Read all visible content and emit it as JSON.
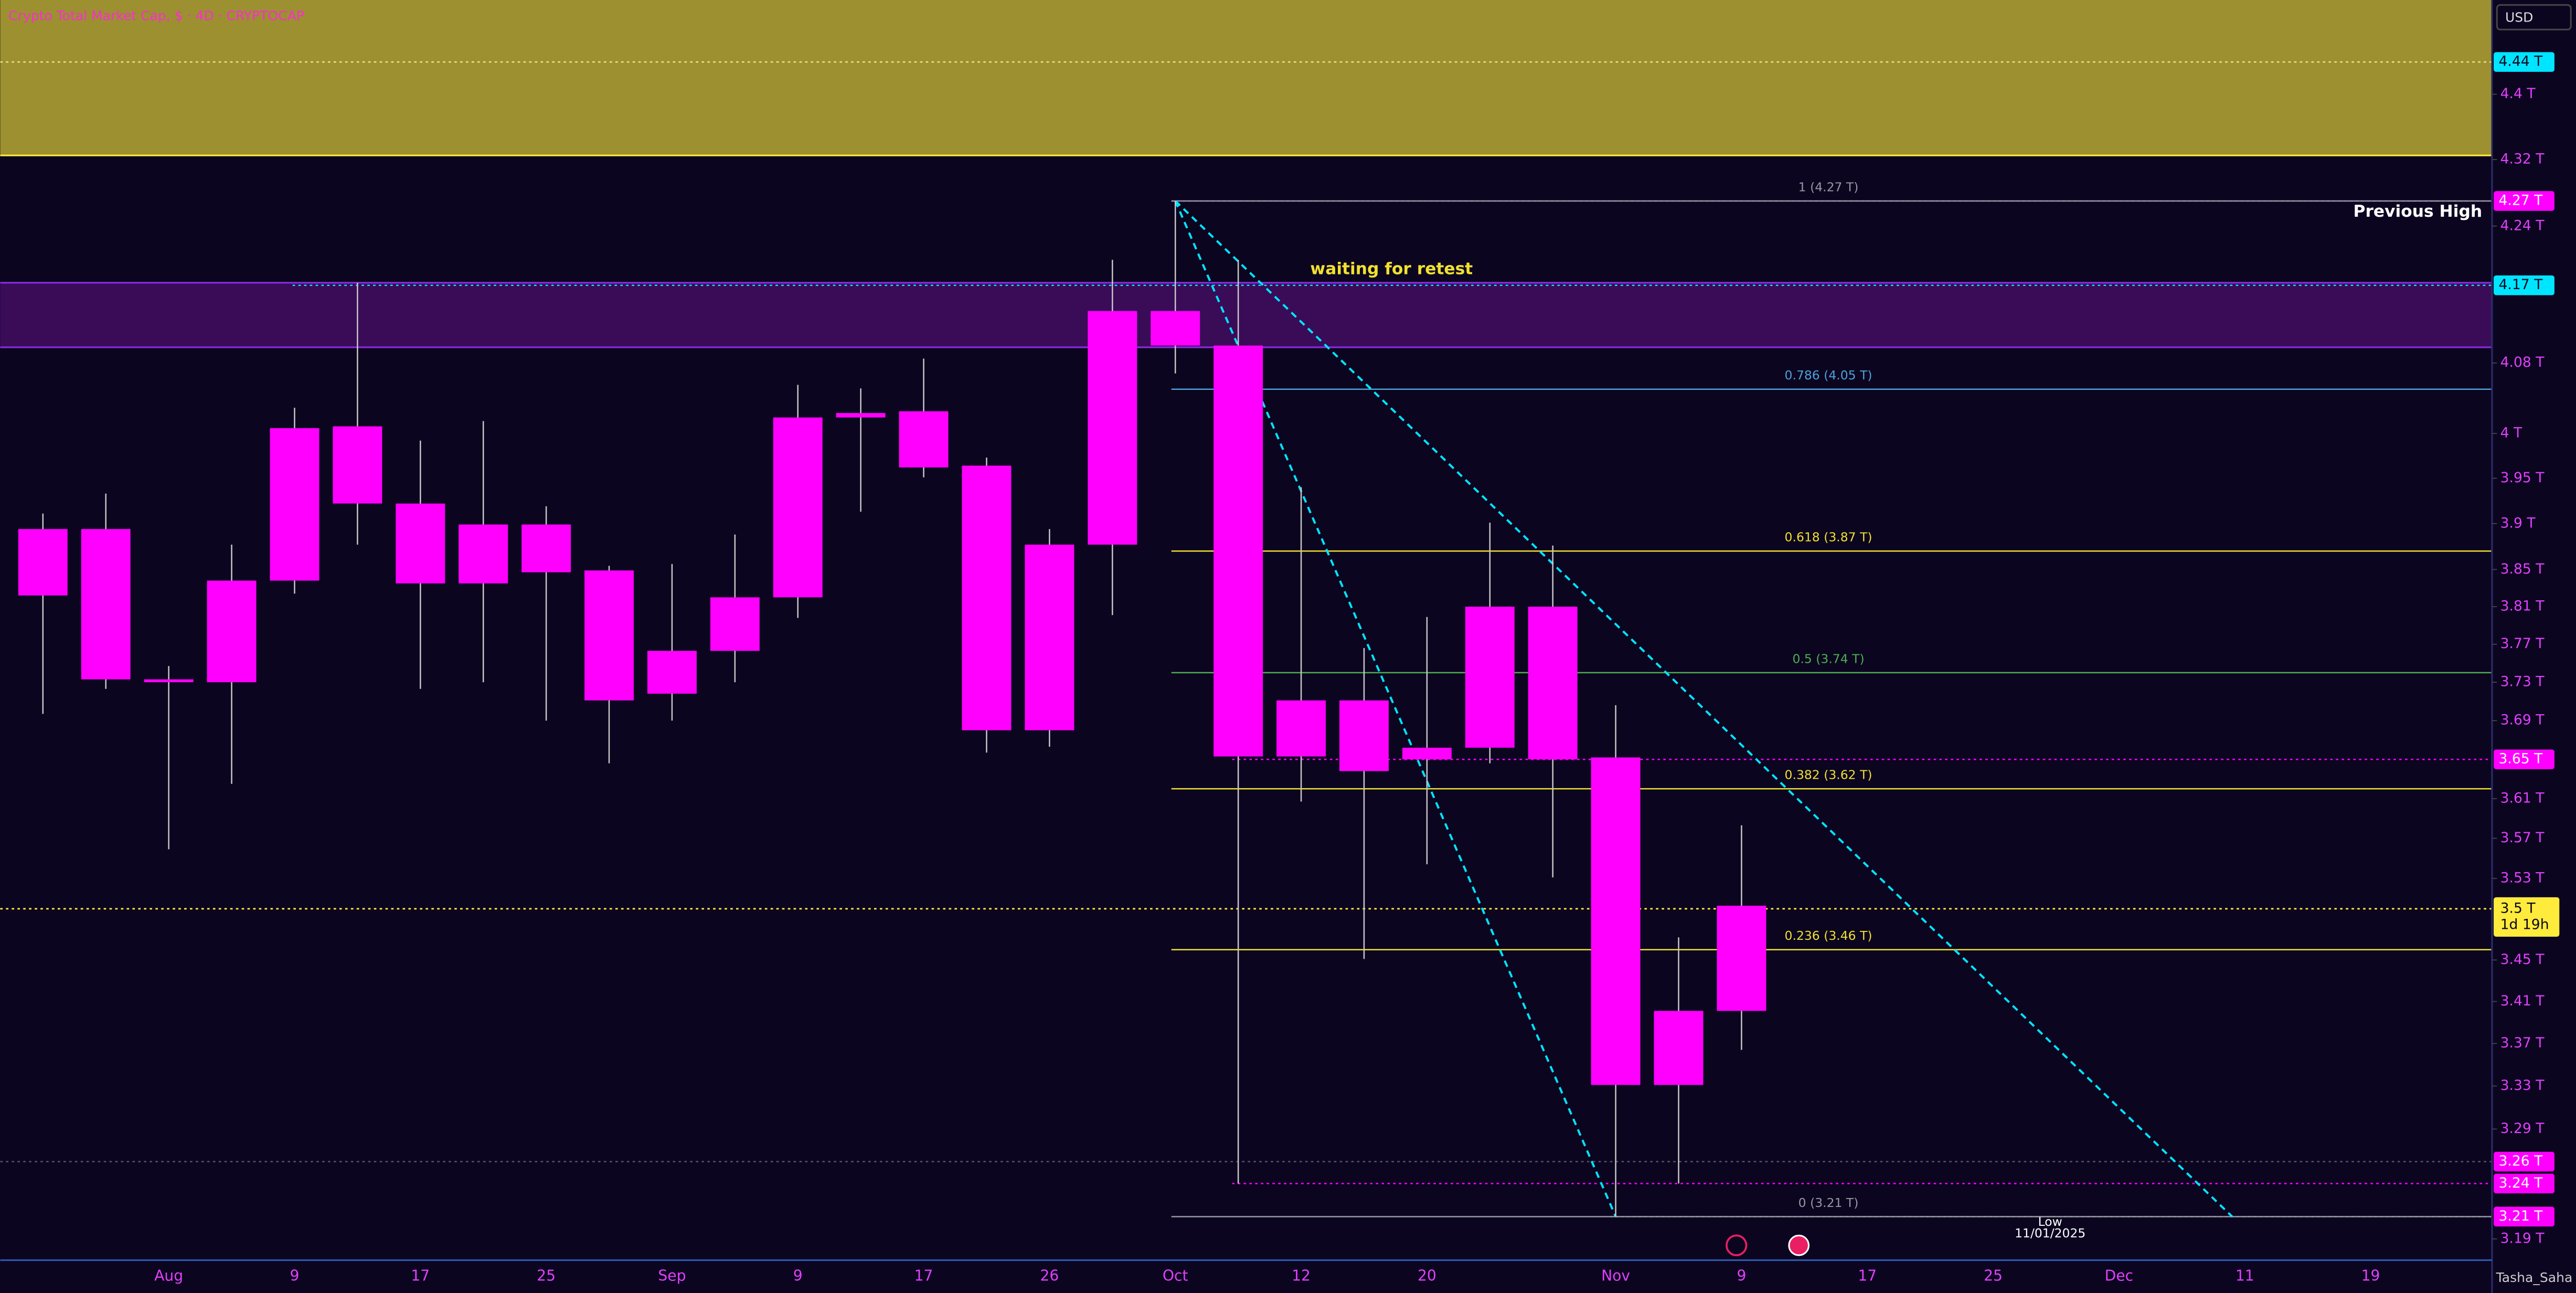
{
  "chart_data": {
    "type": "candlestick",
    "title": "Crypto Total Market Cap, $ · 4D · CRYPTOCAP",
    "currency": "USD",
    "log_scale": true,
    "grid": false,
    "color": "#ff00ff",
    "wick_color": "#c8c8c8",
    "categories": [
      null,
      null,
      "Aug",
      null,
      "9",
      null,
      "17",
      null,
      "25",
      null,
      "Sep",
      null,
      "9",
      null,
      "17",
      null,
      "26",
      null,
      "Oct",
      null,
      "12",
      null,
      "20",
      null,
      null,
      "Nov",
      null,
      "9",
      null,
      "17",
      null,
      "25",
      null,
      "Dec",
      null,
      "11",
      null,
      "19",
      null
    ],
    "open": [
      3.822,
      3.894,
      3.733,
      3.73,
      3.838,
      4.008,
      3.922,
      3.835,
      3.899,
      3.849,
      3.718,
      3.763,
      3.82,
      4.018,
      4.025,
      3.964,
      3.68,
      3.877,
      4.14,
      4.1,
      3.653,
      3.711,
      3.65,
      3.662,
      3.81,
      3.652,
      3.331,
      3.401,
      null,
      null,
      null,
      null,
      null,
      null,
      null,
      null,
      null,
      null,
      null
    ],
    "high": [
      3.911,
      3.933,
      3.747,
      3.877,
      4.029,
      4.173,
      3.992,
      4.014,
      3.919,
      3.854,
      3.856,
      3.888,
      4.055,
      4.051,
      4.085,
      3.973,
      3.894,
      4.2,
      4.27,
      4.2,
      3.94,
      3.766,
      3.799,
      3.901,
      3.876,
      3.706,
      3.472,
      3.583,
      null,
      null,
      null,
      null,
      null,
      null,
      null,
      null,
      null,
      null,
      null
    ],
    "low": [
      3.697,
      3.723,
      3.559,
      3.625,
      3.824,
      3.877,
      3.723,
      3.73,
      3.69,
      3.646,
      3.69,
      3.73,
      3.798,
      3.913,
      3.951,
      3.657,
      3.663,
      3.801,
      4.068,
      3.24,
      3.607,
      3.451,
      3.544,
      3.646,
      3.531,
      3.21,
      3.24,
      3.364,
      null,
      null,
      null,
      null,
      null,
      null,
      null,
      null,
      null,
      null,
      null
    ],
    "close": [
      3.894,
      3.733,
      3.73,
      3.838,
      4.006,
      3.922,
      3.835,
      3.899,
      3.847,
      3.711,
      3.763,
      3.82,
      4.018,
      4.023,
      3.962,
      3.68,
      3.877,
      4.14,
      4.1,
      3.653,
      3.711,
      3.638,
      3.662,
      3.81,
      3.65,
      3.331,
      3.401,
      3.503,
      null,
      null,
      null,
      null,
      null,
      null,
      null,
      null,
      null,
      null,
      null
    ],
    "ylim": [
      3.171,
      4.518
    ],
    "yticks": [
      {
        "value": 4.4,
        "label": "4.4 T"
      },
      {
        "value": 4.32,
        "label": "4.32 T"
      },
      {
        "value": 4.24,
        "label": "4.24 T"
      },
      {
        "value": 4.08,
        "label": "4.08 T"
      },
      {
        "value": 4,
        "label": "4 T"
      },
      {
        "value": 3.95,
        "label": "3.95 T"
      },
      {
        "value": 3.9,
        "label": "3.9 T"
      },
      {
        "value": 3.85,
        "label": "3.85 T"
      },
      {
        "value": 3.81,
        "label": "3.81 T"
      },
      {
        "value": 3.77,
        "label": "3.77 T"
      },
      {
        "value": 3.73,
        "label": "3.73 T"
      },
      {
        "value": 3.69,
        "label": "3.69 T"
      },
      {
        "value": 3.61,
        "label": "3.61 T"
      },
      {
        "value": 3.57,
        "label": "3.57 T"
      },
      {
        "value": 3.53,
        "label": "3.53 T"
      },
      {
        "value": 3.45,
        "label": "3.45 T"
      },
      {
        "value": 3.41,
        "label": "3.41 T"
      },
      {
        "value": 3.37,
        "label": "3.37 T"
      },
      {
        "value": 3.33,
        "label": "3.33 T"
      },
      {
        "value": 3.29,
        "label": "3.29 T"
      },
      {
        "value": 3.19,
        "label": "3.19 T"
      }
    ],
    "zones": [
      {
        "from": 4.325,
        "to": 4.518,
        "color": "#9c9030",
        "border": "#ffeb3b"
      },
      {
        "from": 4.098,
        "to": 4.173,
        "color": "#3a0c58",
        "border": "#8a2be2"
      }
    ],
    "levels": [
      {
        "value": 4.44,
        "label": "4.44 T",
        "color": "#00e5ff",
        "line_color": "#f0e68c"
      },
      {
        "value": 4.27,
        "label": "4.27 T",
        "color": "#ff00ff",
        "line_color": "#ff00ff"
      },
      {
        "value": 4.17,
        "label": "4.17 T",
        "color": "#00e5ff",
        "line_color": "#00e5ff"
      },
      {
        "value": 3.65,
        "label": "3.65 T",
        "color": "#ff00ff",
        "line_color": "#ff00ff"
      },
      {
        "value": 3.26,
        "label": "3.26 T",
        "color": "#ff00ff",
        "line_color": "#555566"
      },
      {
        "value": 3.24,
        "label": "3.24 T",
        "color": "#ff00ff",
        "line_color": "#ff00ff"
      },
      {
        "value": 3.21,
        "label": "3.21 T",
        "color": "#ff00ff",
        "line_color": "#9598a1"
      }
    ],
    "last_price": {
      "value": 3.5,
      "label": "3.5 T",
      "countdown": "1d 19h",
      "color": "#ffeb3b"
    },
    "fib_levels": [
      {
        "value": 4.27,
        "label": "1 (4.27 T)",
        "color": "#9598a1"
      },
      {
        "value": 4.05,
        "label": "0.786 (4.05 T)",
        "color": "#4aa3d8"
      },
      {
        "value": 3.87,
        "label": "0.618 (3.87 T)",
        "color": "#f0e130"
      },
      {
        "value": 3.74,
        "label": "0.5 (3.74 T)",
        "color": "#4caf50"
      },
      {
        "value": 3.62,
        "label": "0.382 (3.62 T)",
        "color": "#f0e130"
      },
      {
        "value": 3.46,
        "label": "0.236 (3.46 T)",
        "color": "#f0e130"
      },
      {
        "value": 3.21,
        "label": "0 (3.21 T)",
        "color": "#9598a1"
      }
    ],
    "trendlines": [
      {
        "x": [
          18,
          25
        ],
        "y": [
          4.27,
          3.21
        ],
        "color": "#00e5ff"
      },
      {
        "x": [
          18,
          34.8
        ],
        "y": [
          4.27,
          3.21
        ],
        "color": "#00e5ff"
      }
    ],
    "annotations": {
      "previous_high": "Previous High",
      "retest": "waiting for retest",
      "low": "Low",
      "low_date": "11/01/2025",
      "author": "Tasha_Saha"
    }
  }
}
